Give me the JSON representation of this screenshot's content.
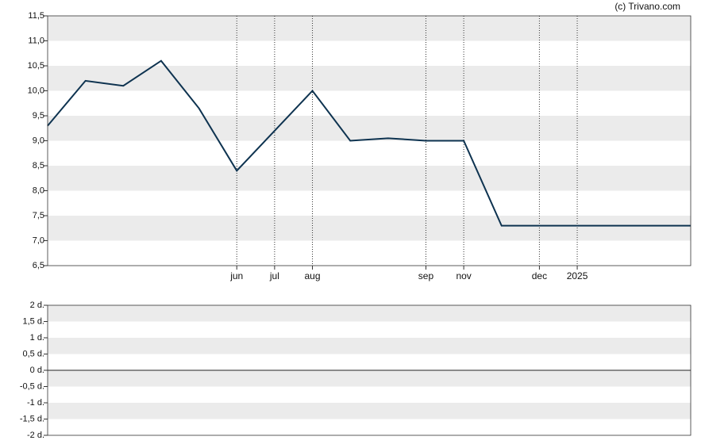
{
  "credit": "(c) Trivano.com",
  "chart_data": [
    {
      "type": "line",
      "categories": [
        null,
        null,
        null,
        null,
        null,
        "jun",
        "jul",
        "aug",
        null,
        null,
        "sep",
        "nov",
        null,
        "dec",
        "2025",
        null,
        null,
        null
      ],
      "series": [
        {
          "name": null,
          "color": "#0e3350",
          "values": [
            9.3,
            10.2,
            10.1,
            10.6,
            9.65,
            8.4,
            9.2,
            10.0,
            9.0,
            9.05,
            9.0,
            9.0,
            7.3,
            7.3,
            7.3,
            7.3,
            7.3,
            7.3
          ]
        }
      ],
      "ylim": [
        6.5,
        11.5
      ],
      "yticks": [
        {
          "value": 6.5,
          "label": "6,5"
        },
        {
          "value": 7.0,
          "label": "7,0"
        },
        {
          "value": 7.5,
          "label": "7,5"
        },
        {
          "value": 8.0,
          "label": "8,0"
        },
        {
          "value": 8.5,
          "label": "8,5"
        },
        {
          "value": 9.0,
          "label": "9,0"
        },
        {
          "value": 9.5,
          "label": "9,5"
        },
        {
          "value": 10.0,
          "label": "10,0"
        },
        {
          "value": 10.5,
          "label": "10,5"
        },
        {
          "value": 11.0,
          "label": "11,0"
        },
        {
          "value": 11.5,
          "label": "11,5"
        }
      ],
      "band_color": "#ebebeb",
      "grid": true
    },
    {
      "type": "line",
      "series": [],
      "ylim": [
        -2,
        2
      ],
      "yticks": [
        {
          "value": -2,
          "label": "-2 d."
        },
        {
          "value": -1.5,
          "label": "-1,5 d."
        },
        {
          "value": -1,
          "label": "-1 d."
        },
        {
          "value": -0.5,
          "label": "-0,5 d."
        },
        {
          "value": 0,
          "label": "0 d."
        },
        {
          "value": 0.5,
          "label": "0,5 d."
        },
        {
          "value": 1,
          "label": "1 d."
        },
        {
          "value": 1.5,
          "label": "1,5 d."
        },
        {
          "value": 2,
          "label": "2 d."
        }
      ],
      "band_color": "#ebebeb",
      "zero_line": true
    }
  ]
}
